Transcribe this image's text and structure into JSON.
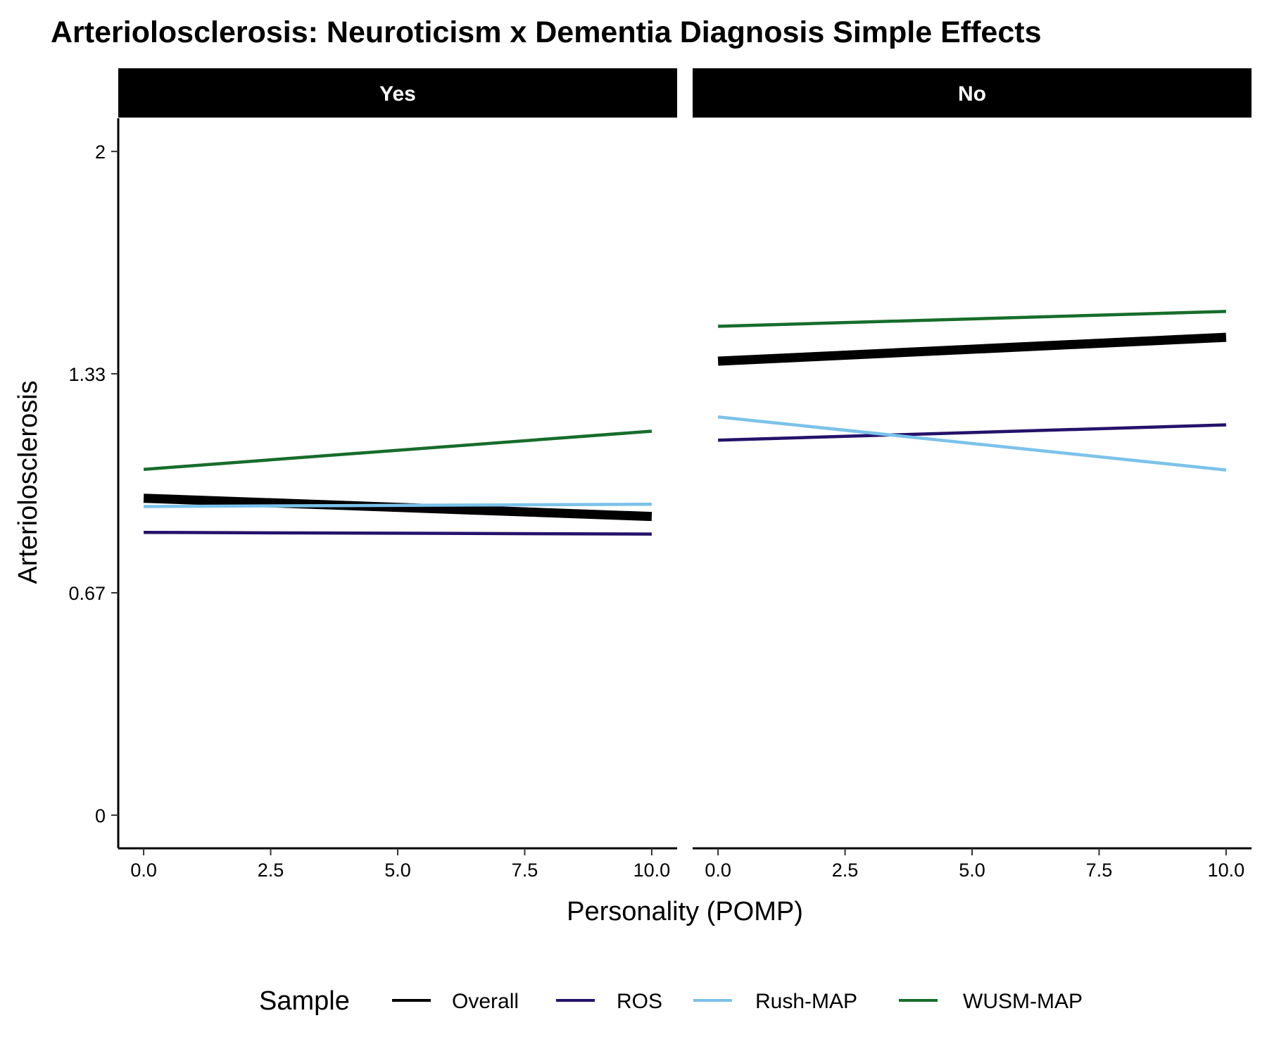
{
  "chart_data": {
    "type": "line",
    "title": "Arteriolosclerosis: Neuroticism x Dementia Diagnosis Simple Effects",
    "xlabel": "Personality (POMP)",
    "ylabel": "Arteriolosclerosis",
    "xlim": [
      -0.5,
      10.5
    ],
    "ylim": [
      -0.1,
      2.1
    ],
    "x_ticks": [
      0,
      2.5,
      5,
      7.5,
      10
    ],
    "x_tick_labels": [
      "0.0",
      "2.5",
      "5.0",
      "7.5",
      "10.0"
    ],
    "y_ticks": [
      0,
      0.67,
      1.33,
      2
    ],
    "y_tick_labels": [
      "0",
      "0.67",
      "1.33",
      "2"
    ],
    "grid": false,
    "legend": {
      "title": "Sample",
      "position": "bottom",
      "entries": [
        "Overall",
        "ROS",
        "Rush-MAP",
        "WUSM-MAP"
      ]
    },
    "facets": [
      {
        "label": "Yes",
        "series": [
          {
            "name": "Overall",
            "color": "#000000",
            "x": [
              0,
              10
            ],
            "y": [
              0.955,
              0.9
            ]
          },
          {
            "name": "ROS",
            "color": "#24126A",
            "x": [
              0,
              10
            ],
            "y": [
              0.852,
              0.847
            ]
          },
          {
            "name": "Rush-MAP",
            "color": "#7BC2EA",
            "x": [
              0,
              10
            ],
            "y": [
              0.93,
              0.937
            ]
          },
          {
            "name": "WUSM-MAP",
            "color": "#166D2B",
            "x": [
              0,
              10
            ],
            "y": [
              1.042,
              1.157
            ]
          }
        ]
      },
      {
        "label": "No",
        "series": [
          {
            "name": "Overall",
            "color": "#000000",
            "x": [
              0,
              10
            ],
            "y": [
              1.368,
              1.44
            ]
          },
          {
            "name": "ROS",
            "color": "#24126A",
            "x": [
              0,
              10
            ],
            "y": [
              1.13,
              1.176
            ]
          },
          {
            "name": "Rush-MAP",
            "color": "#7BC2EA",
            "x": [
              0,
              10
            ],
            "y": [
              1.2,
              1.04
            ]
          },
          {
            "name": "WUSM-MAP",
            "color": "#166D2B",
            "x": [
              0,
              10
            ],
            "y": [
              1.473,
              1.518
            ]
          }
        ]
      }
    ]
  }
}
